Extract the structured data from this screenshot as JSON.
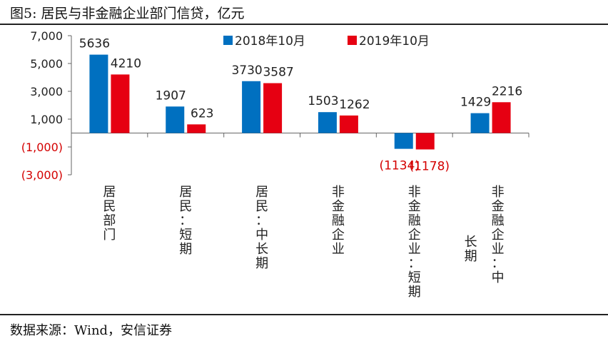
{
  "figure": {
    "title": "图5:   居民与非金融企业部门信贷，亿元",
    "source": "数据来源：Wind，安信证券"
  },
  "chart_data": {
    "type": "bar",
    "categories": [
      "居民部门",
      "居民：短期",
      "居民：中长期",
      "非金融企业",
      "非金融企业：短期",
      "非金融企业：中长期"
    ],
    "series": [
      {
        "name": "2018年10月",
        "color": "#0070c0",
        "values": [
          5636,
          1907,
          3730,
          1503,
          -1134,
          1429
        ]
      },
      {
        "name": "2019年10月",
        "color": "#e60012",
        "values": [
          4210,
          623,
          3587,
          1262,
          -1178,
          2216
        ]
      }
    ],
    "data_labels": {
      "2018年10月": [
        "5636",
        "1907",
        "3730",
        "1503",
        "(1134)",
        "1429"
      ],
      "2019年10月": [
        "4210",
        "623",
        "3587",
        "1262",
        "(1178)",
        "2216"
      ]
    },
    "ylim": [
      -3000,
      7000
    ],
    "yticks": [
      7000,
      5000,
      3000,
      1000,
      -1000,
      -3000
    ],
    "ytick_labels": [
      "7,000",
      "5,000",
      "3,000",
      "1,000",
      "(1,000)",
      "(3,000)"
    ],
    "negative_color": "#d40000",
    "legend_position": "top",
    "grid": false
  }
}
